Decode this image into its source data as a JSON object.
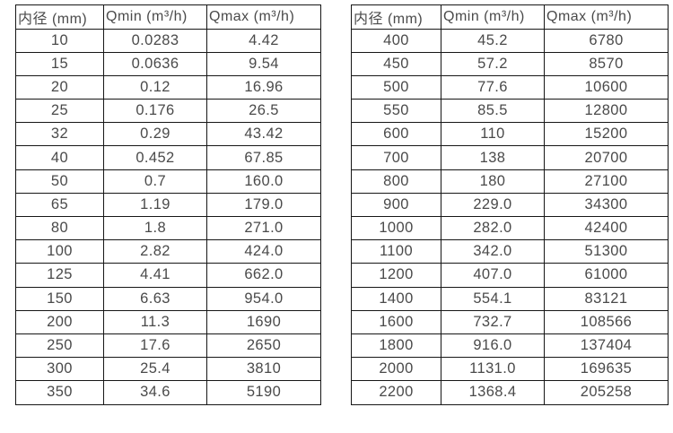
{
  "colors": {
    "background": "#ffffff",
    "text": "#4a4a4a",
    "border": "#161616"
  },
  "tables": [
    {
      "name": "flow-spec-table-small-diameters",
      "headers": [
        "内径 (mm)",
        "Qmin (m³/h)",
        "Qmax (m³/h)"
      ],
      "rows": [
        [
          "10",
          "0.0283",
          "4.42"
        ],
        [
          "15",
          "0.0636",
          "9.54"
        ],
        [
          "20",
          "0.12",
          "16.96"
        ],
        [
          "25",
          "0.176",
          "26.5"
        ],
        [
          "32",
          "0.29",
          "43.42"
        ],
        [
          "40",
          "0.452",
          "67.85"
        ],
        [
          "50",
          "0.7",
          "160.0"
        ],
        [
          "65",
          "1.19",
          "179.0"
        ],
        [
          "80",
          "1.8",
          "271.0"
        ],
        [
          "100",
          "2.82",
          "424.0"
        ],
        [
          "125",
          "4.41",
          "662.0"
        ],
        [
          "150",
          "6.63",
          "954.0"
        ],
        [
          "200",
          "11.3",
          "1690"
        ],
        [
          "250",
          "17.6",
          "2650"
        ],
        [
          "300",
          "25.4",
          "3810"
        ],
        [
          "350",
          "34.6",
          "5190"
        ]
      ]
    },
    {
      "name": "flow-spec-table-large-diameters",
      "headers": [
        "内径 (mm)",
        "Qmin (m³/h)",
        "Qmax (m³/h)"
      ],
      "rows": [
        [
          "400",
          "45.2",
          "6780"
        ],
        [
          "450",
          "57.2",
          "8570"
        ],
        [
          "500",
          "77.6",
          "10600"
        ],
        [
          "550",
          "85.5",
          "12800"
        ],
        [
          "600",
          "110",
          "15200"
        ],
        [
          "700",
          "138",
          "20700"
        ],
        [
          "800",
          "180",
          "27100"
        ],
        [
          "900",
          "229.0",
          "34300"
        ],
        [
          "1000",
          "282.0",
          "42400"
        ],
        [
          "1100",
          "342.0",
          "51300"
        ],
        [
          "1200",
          "407.0",
          "61000"
        ],
        [
          "1400",
          "554.1",
          "83121"
        ],
        [
          "1600",
          "732.7",
          "108566"
        ],
        [
          "1800",
          "916.0",
          "137404"
        ],
        [
          "2000",
          "1131.0",
          "169635"
        ],
        [
          "2200",
          "1368.4",
          "205258"
        ]
      ]
    }
  ]
}
